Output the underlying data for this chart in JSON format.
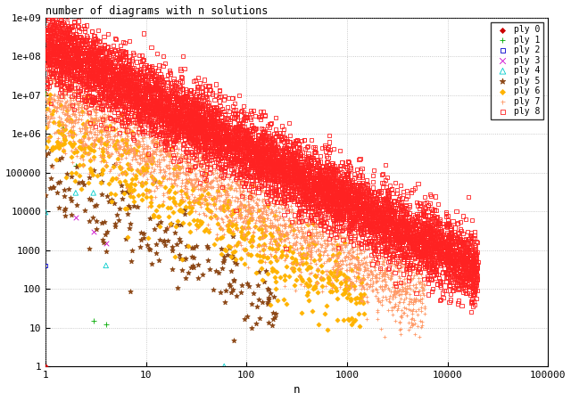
{
  "title": "number of diagrams with n solutions",
  "xlabel": "n",
  "xlim": [
    1,
    100000
  ],
  "ylim": [
    1,
    1000000000.0
  ],
  "series": [
    {
      "label": "ply 0",
      "color": "#cc0000",
      "marker": "D",
      "markersize": 2.5,
      "filled": true
    },
    {
      "label": "ply 1",
      "color": "#00aa00",
      "marker": "+",
      "markersize": 4,
      "filled": true
    },
    {
      "label": "ply 2",
      "color": "#0000cc",
      "marker": "s",
      "markersize": 3,
      "filled": false
    },
    {
      "label": "ply 3",
      "color": "#cc00cc",
      "marker": "x",
      "markersize": 4,
      "filled": true
    },
    {
      "label": "ply 4",
      "color": "#00cccc",
      "marker": "^",
      "markersize": 4,
      "filled": false
    },
    {
      "label": "ply 5",
      "color": "#8B4513",
      "marker": "*",
      "markersize": 4,
      "filled": true
    },
    {
      "label": "ply 6",
      "color": "#FFB300",
      "marker": "D",
      "markersize": 2.5,
      "filled": true
    },
    {
      "label": "ply 7",
      "color": "#FF9966",
      "marker": "+",
      "markersize": 3,
      "filled": true
    },
    {
      "label": "ply 8",
      "color": "#FF2222",
      "marker": "s",
      "markersize": 3,
      "filled": false
    }
  ],
  "background_color": "#ffffff",
  "grid_color": "#aaaaaa"
}
